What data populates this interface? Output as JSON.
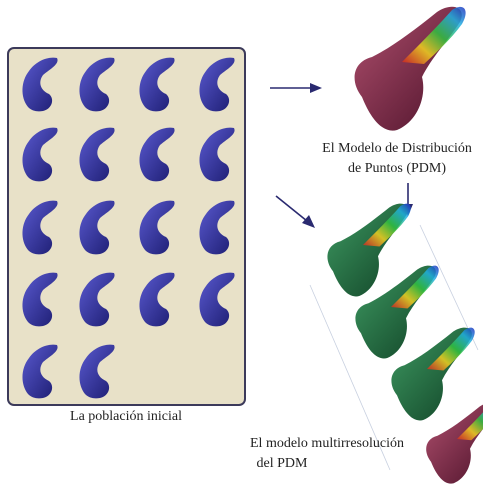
{
  "population_caption": "La población inicial",
  "pdm_caption": [
    "El Modelo de Distribución",
    "de Puntos (PDM)"
  ],
  "multires_caption": [
    "El modelo multirresolución",
    "del PDM"
  ]
}
